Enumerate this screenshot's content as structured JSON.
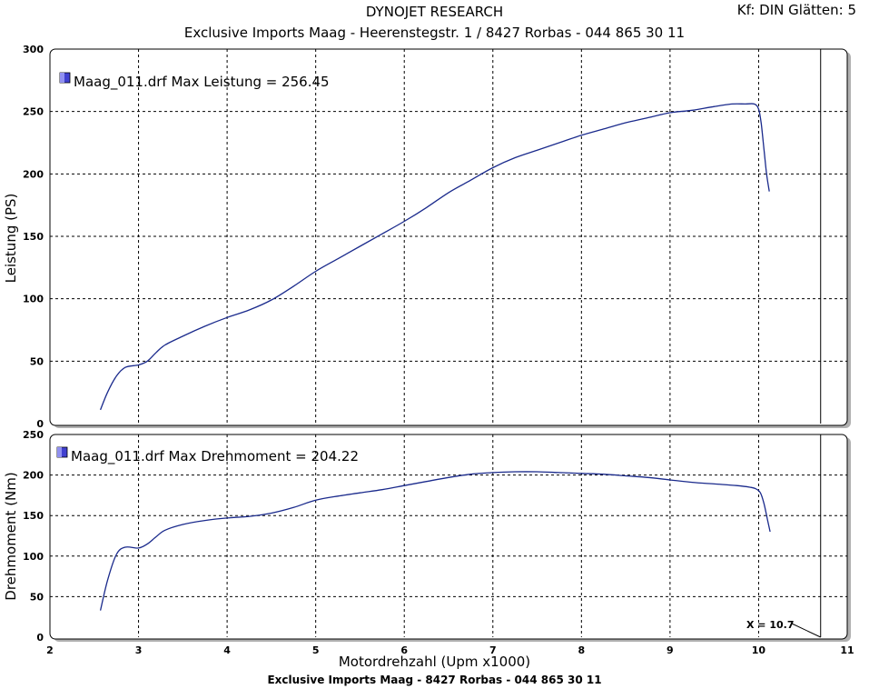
{
  "header": {
    "title": "DYNOJET RESEARCH",
    "subtitle": "Exclusive Imports Maag - Heerenstegstr. 1 / 8427 Rorbas - 044 865 30 11",
    "corner": "Kf: DIN  Glätten: 5"
  },
  "footer": {
    "text": "Exclusive Imports Maag - 8427 Rorbas - 044 865 30 11"
  },
  "colors": {
    "curve": "#1a2a8c",
    "grid": "#000000",
    "legend_swatch": "#4040d0"
  },
  "chart_data": [
    {
      "type": "line",
      "ylabel": "Leistung (PS)",
      "ylim": [
        0,
        300
      ],
      "yticks": [
        "0",
        "50",
        "100",
        "150",
        "200",
        "250",
        "300"
      ],
      "xlim": [
        2,
        11
      ],
      "grid": true,
      "legend": "Maag_011.drf Max Leistung = 256.45",
      "legend_placement": "top-left",
      "series": [
        {
          "x": [
            2.57,
            2.65,
            2.75,
            2.85,
            3.0,
            3.1,
            3.2,
            3.3,
            3.5,
            3.75,
            4.0,
            4.25,
            4.5,
            4.75,
            5.0,
            5.25,
            5.5,
            5.75,
            6.0,
            6.25,
            6.5,
            6.75,
            7.0,
            7.25,
            7.5,
            7.75,
            8.0,
            8.25,
            8.5,
            8.75,
            9.0,
            9.25,
            9.5,
            9.7,
            9.85,
            9.95,
            10.0,
            10.03,
            10.06,
            10.09,
            10.12
          ],
          "y": [
            11,
            25,
            38,
            45,
            47,
            50,
            57,
            63,
            70,
            78,
            85,
            91,
            99,
            110,
            122,
            132,
            142,
            152,
            162,
            173,
            185,
            195,
            205,
            213,
            219,
            225,
            231,
            236,
            241,
            245,
            249,
            251,
            254,
            256,
            256,
            256,
            252,
            240,
            220,
            200,
            186
          ]
        }
      ]
    },
    {
      "type": "line",
      "ylabel": "Drehmoment (Nm)",
      "ylim": [
        0,
        250
      ],
      "yticks": [
        "0",
        "50",
        "100",
        "150",
        "200",
        "250"
      ],
      "xlim": [
        2,
        11
      ],
      "xticks": [
        "2",
        "3",
        "4",
        "5",
        "6",
        "7",
        "8",
        "9",
        "10",
        "11"
      ],
      "xlabel": "Motordrehzahl (Upm x1000)",
      "grid": true,
      "legend": "Maag_011.drf Max Drehmoment = 204.22",
      "legend_placement": "top-left",
      "annotation": "X = 10.7",
      "cursor_x": 10.7,
      "series": [
        {
          "x": [
            2.57,
            2.65,
            2.75,
            2.85,
            3.0,
            3.1,
            3.2,
            3.3,
            3.5,
            3.75,
            4.0,
            4.25,
            4.5,
            4.75,
            5.0,
            5.25,
            5.5,
            5.75,
            6.0,
            6.25,
            6.5,
            6.75,
            7.0,
            7.25,
            7.5,
            7.75,
            8.0,
            8.25,
            8.5,
            8.75,
            9.0,
            9.25,
            9.5,
            9.75,
            9.9,
            9.97,
            10.02,
            10.06,
            10.1,
            10.13
          ],
          "y": [
            33,
            70,
            102,
            111,
            110,
            115,
            124,
            132,
            139,
            144,
            147,
            149,
            153,
            160,
            169,
            174,
            178,
            182,
            187,
            192,
            197,
            201,
            203,
            204,
            204,
            203,
            202,
            201,
            199,
            197,
            194,
            191,
            189,
            187,
            185,
            183,
            178,
            165,
            145,
            130
          ]
        }
      ]
    }
  ],
  "xaxis": {
    "label": "Motordrehzahl (Upm x1000)"
  }
}
